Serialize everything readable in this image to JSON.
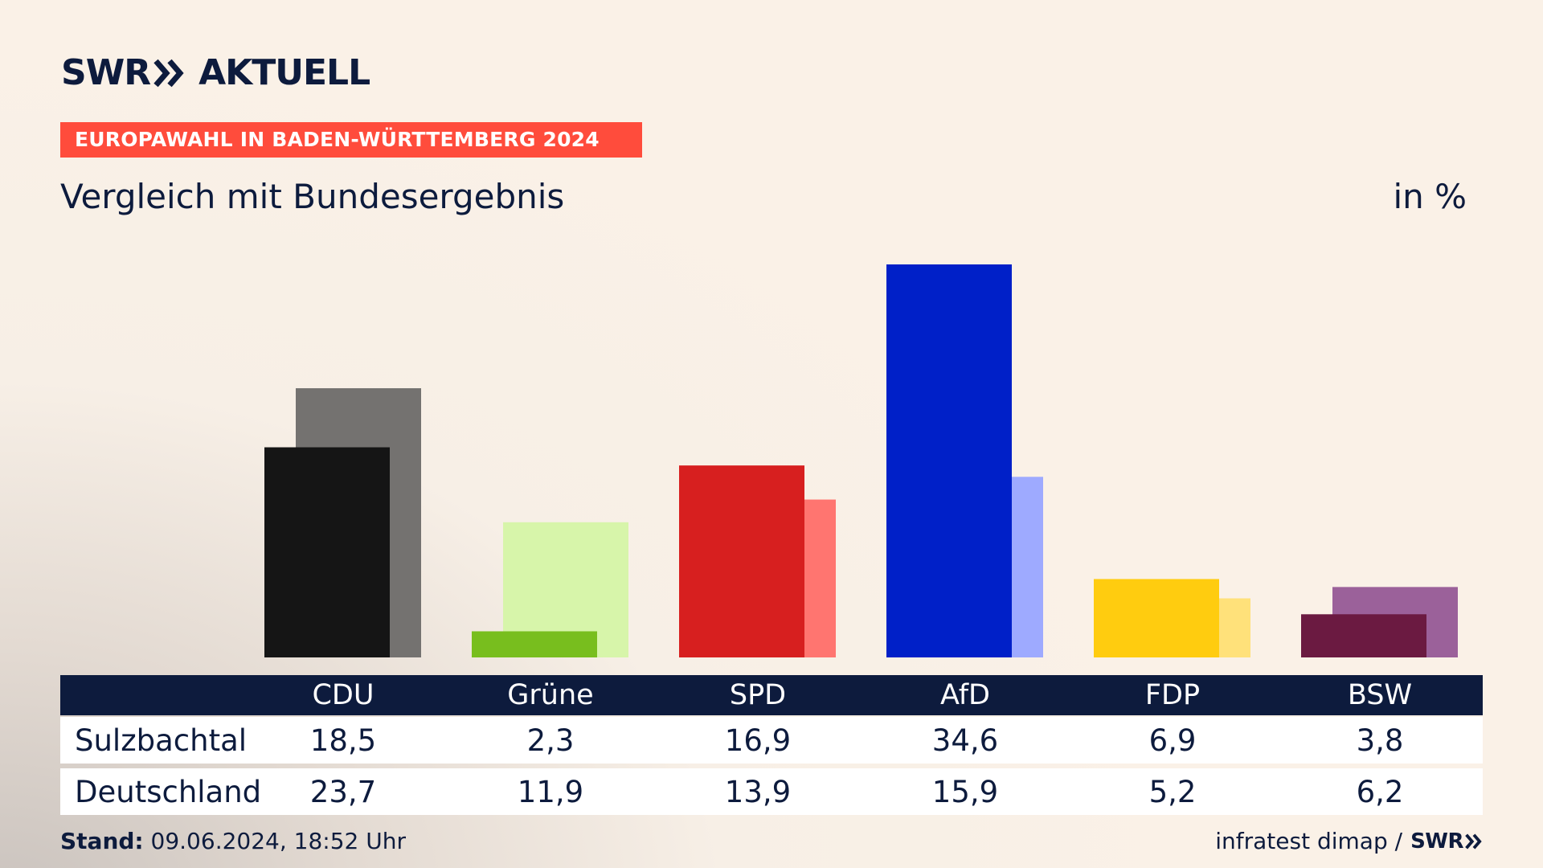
{
  "brand": {
    "logo_text": "SWR",
    "logo_sub": "AKTUELL",
    "footer_logo": "SWR"
  },
  "banner": "EUROPAWAHL IN BADEN-WÜRTTEMBERG 2024",
  "subtitle": "Vergleich mit Bundesergebnis",
  "unit": "in %",
  "table": {
    "rows": [
      {
        "label": "Sulzbachtal",
        "values": [
          "18,5",
          "2,3",
          "16,9",
          "34,6",
          "6,9",
          "3,8"
        ]
      },
      {
        "label": "Deutschland",
        "values": [
          "23,7",
          "11,9",
          "13,9",
          "15,9",
          "5,2",
          "6,2"
        ]
      }
    ]
  },
  "footer": {
    "stand_label": "Stand:",
    "stand_value": "09.06.2024, 18:52 Uhr",
    "source": "infratest dimap /"
  },
  "colors": {
    "banner": "#ff4c3c",
    "navy": "#0d1b3d"
  },
  "chart_data": {
    "type": "bar",
    "categories": [
      "CDU",
      "Grüne",
      "SPD",
      "AfD",
      "FDP",
      "BSW"
    ],
    "series": [
      {
        "name": "Sulzbachtal",
        "values": [
          18.5,
          2.3,
          16.9,
          34.6,
          6.9,
          3.8
        ],
        "colors": [
          "#151515",
          "#78be1e",
          "#d71f1f",
          "#0020c8",
          "#ffcc0f",
          "#6b1a41"
        ]
      },
      {
        "name": "Deutschland",
        "values": [
          23.7,
          11.9,
          13.9,
          15.9,
          5.2,
          6.2
        ],
        "colors": [
          "#747270",
          "#d7f5aa",
          "#ff7570",
          "#9eaaff",
          "#ffe17a",
          "#9b619a"
        ]
      }
    ],
    "ylim": [
      0,
      35
    ]
  }
}
